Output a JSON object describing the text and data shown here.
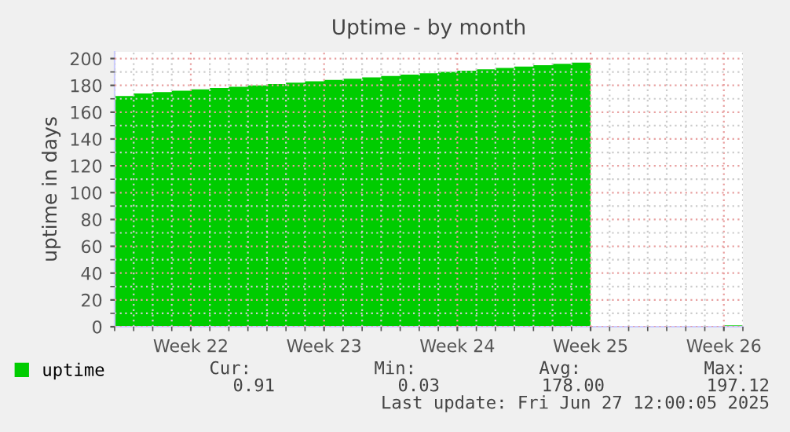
{
  "chart_data": {
    "type": "area",
    "title": "Uptime - by month",
    "ylabel": "uptime in days",
    "categories": [
      null,
      null,
      null,
      null,
      "Week 22",
      null,
      null,
      null,
      null,
      null,
      null,
      "Week 23",
      null,
      null,
      null,
      null,
      null,
      null,
      "Week 24",
      null,
      null,
      null,
      null,
      null,
      null,
      "Week 25",
      null,
      null,
      null,
      null,
      null,
      null,
      "Week 26",
      null
    ],
    "series": [
      {
        "name": "uptime",
        "color": "#00cc00",
        "values": [
          172,
          174,
          175,
          176,
          177,
          178,
          179,
          180,
          181,
          182,
          183,
          184,
          185,
          186,
          187,
          188,
          189,
          190,
          191,
          192,
          193,
          194,
          195,
          196,
          197,
          197,
          null,
          null,
          null,
          null,
          null,
          null,
          1,
          1
        ]
      }
    ],
    "ylim": [
      0,
      205
    ],
    "yticks": [
      0,
      20,
      40,
      60,
      80,
      100,
      120,
      140,
      160,
      180,
      200
    ],
    "grid": true,
    "legend": "bottom left",
    "annotations": [
      "Cur:",
      "Min:",
      "Avg:",
      "Max:",
      "0.91",
      "0.03",
      "178.00",
      "197.12",
      "Last update: Fri Jun 27 12:00:05 2025"
    ]
  }
}
